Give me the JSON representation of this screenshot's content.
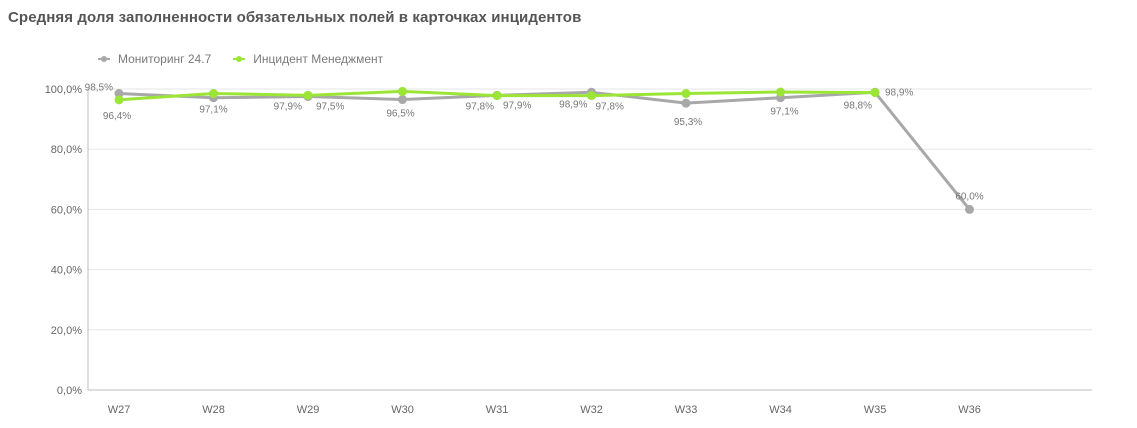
{
  "colors": {
    "monitoring": "#a8a8a8",
    "incident": "#9be536",
    "grid": "#e6e6e6",
    "axis": "#bdbdbd"
  },
  "chart_data": {
    "type": "line",
    "title": "Средняя доля заполненности обязательных полей в карточках инцидентов",
    "xlabel": "",
    "ylabel": "",
    "ylim": [
      0,
      100
    ],
    "categories": [
      "W27",
      "W28",
      "W29",
      "W30",
      "W31",
      "W32",
      "W33",
      "W34",
      "W35",
      "W36"
    ],
    "y_ticks": [
      "0,0%",
      "20,0%",
      "40,0%",
      "60,0%",
      "80,0%",
      "100,0%"
    ],
    "grid": true,
    "legend": "top-left",
    "series": [
      {
        "name": "Мониторинг 24.7",
        "values": [
          98.5,
          97.1,
          97.5,
          96.5,
          97.9,
          98.9,
          95.3,
          97.1,
          98.9,
          60.0
        ],
        "labels": [
          "98,5%",
          "97,1%",
          "97,5%",
          "96,5%",
          "97,9%",
          "98,9%",
          "95,3%",
          "97,1%",
          "98,9%",
          "60,0%"
        ]
      },
      {
        "name": "Инцидент Менеджмент",
        "values": [
          96.4,
          98.5,
          97.9,
          99.2,
          97.8,
          97.8,
          98.5,
          99.0,
          98.8,
          null
        ],
        "labels": [
          "96,4%",
          "",
          "97,9%",
          "",
          "97,8%",
          "97,8%",
          "",
          "",
          "98,8%",
          ""
        ]
      }
    ]
  }
}
